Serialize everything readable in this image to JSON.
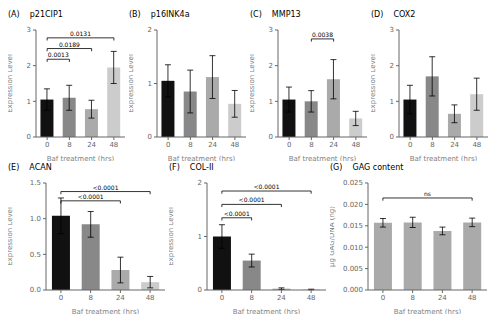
{
  "chart_data": [
    {
      "type": "bar",
      "panel_label": "(A)",
      "title": "p21CIP1",
      "x_label": "Baf treatment (hrs)",
      "y_label": "Expression Level",
      "categories": [
        "0",
        "8",
        "24",
        "48"
      ],
      "values": [
        1.05,
        1.1,
        0.78,
        1.95
      ],
      "errors": [
        0.3,
        0.35,
        0.25,
        0.45
      ],
      "colors": [
        "#111111",
        "#888888",
        "#aaaaaa",
        "#cccccc"
      ],
      "ylim": [
        0,
        3
      ],
      "yticks": [
        0,
        1,
        2,
        3
      ],
      "grid": false,
      "annotations": [
        {
          "from": "0",
          "to": "48",
          "y": 2.78,
          "text": "0.0131"
        },
        {
          "from": "0",
          "to": "24",
          "y": 2.48,
          "text": "0.0189"
        },
        {
          "from": "0",
          "to": "8",
          "y": 2.18,
          "text": "0.0013"
        }
      ]
    },
    {
      "type": "bar",
      "panel_label": "(B)",
      "title": "p16INK4a",
      "x_label": "Baf treatment (hrs)",
      "y_label": "Expression Level",
      "categories": [
        "0",
        "8",
        "24",
        "48"
      ],
      "values": [
        1.05,
        0.85,
        1.12,
        0.62
      ],
      "errors": [
        0.3,
        0.4,
        0.4,
        0.25
      ],
      "colors": [
        "#111111",
        "#888888",
        "#aaaaaa",
        "#cccccc"
      ],
      "ylim": [
        0,
        2
      ],
      "yticks": [
        0,
        1,
        2
      ],
      "grid": false,
      "annotations": []
    },
    {
      "type": "bar",
      "panel_label": "(C)",
      "title": "MMP13",
      "x_label": "Baf treatment (hrs)",
      "y_label": "Expression Level",
      "categories": [
        "0",
        "8",
        "24",
        "48"
      ],
      "values": [
        1.05,
        1.0,
        1.62,
        0.52
      ],
      "errors": [
        0.35,
        0.3,
        0.55,
        0.2
      ],
      "colors": [
        "#111111",
        "#888888",
        "#aaaaaa",
        "#cccccc"
      ],
      "ylim": [
        0,
        3
      ],
      "yticks": [
        0,
        1,
        2,
        3
      ],
      "grid": false,
      "annotations": [
        {
          "from": "8",
          "to": "24",
          "y": 2.75,
          "text": "0.0038"
        }
      ]
    },
    {
      "type": "bar",
      "panel_label": "(D)",
      "title": "COX2",
      "x_label": "Baf treatment (hrs)",
      "y_label": "Expression Level",
      "categories": [
        "0",
        "8",
        "24",
        "48"
      ],
      "values": [
        1.05,
        1.7,
        0.65,
        1.2
      ],
      "errors": [
        0.4,
        0.55,
        0.25,
        0.45
      ],
      "colors": [
        "#111111",
        "#888888",
        "#aaaaaa",
        "#cccccc"
      ],
      "ylim": [
        0,
        3
      ],
      "yticks": [
        0,
        1,
        2,
        3
      ],
      "grid": false,
      "annotations": []
    },
    {
      "type": "bar",
      "panel_label": "(E)",
      "title": "ACAN",
      "x_label": "Baf treatment (hrs)",
      "y_label": "Expression Level",
      "categories": [
        "0",
        "8",
        "24",
        "48"
      ],
      "values": [
        1.04,
        0.92,
        0.28,
        0.11
      ],
      "errors": [
        0.25,
        0.18,
        0.18,
        0.08
      ],
      "colors": [
        "#111111",
        "#888888",
        "#aaaaaa",
        "#cccccc"
      ],
      "ylim": [
        0,
        1.5
      ],
      "yticks": [
        {
          "value": 0,
          "label": "0.0"
        },
        0.5,
        {
          "value": 1.0,
          "label": "1.0"
        },
        1.5
      ],
      "grid": false,
      "annotations": [
        {
          "from": "0",
          "to": "48",
          "y": 1.38,
          "text": "<0.0001"
        },
        {
          "from": "0",
          "to": "24",
          "y": 1.25,
          "text": "<0.0001"
        }
      ]
    },
    {
      "type": "bar",
      "panel_label": "(F)",
      "title": "COL-II",
      "x_label": "Baf treatment (hrs)",
      "y_label": "Expression Level",
      "categories": [
        "0",
        "8",
        "24",
        "48"
      ],
      "values": [
        1.0,
        0.55,
        0.025,
        0.01
      ],
      "errors": [
        0.22,
        0.12,
        0.015,
        0.005
      ],
      "colors": [
        "#111111",
        "#888888",
        "#aaaaaa",
        "#cccccc"
      ],
      "ylim": [
        0,
        2
      ],
      "yticks": [
        0,
        1,
        2
      ],
      "grid": false,
      "annotations": [
        {
          "from": "0",
          "to": "48",
          "y": 1.85,
          "text": "<0.0001"
        },
        {
          "from": "0",
          "to": "24",
          "y": 1.6,
          "text": "<0.0001"
        },
        {
          "from": "0",
          "to": "8",
          "y": 1.35,
          "text": "<0.0001"
        }
      ]
    },
    {
      "type": "bar",
      "panel_label": "(G)",
      "title": "GAG content",
      "x_label": "Baf treatment (hrs)",
      "y_label": "μg GAG/DNA (ng)",
      "categories": [
        "0",
        "8",
        "24",
        "48"
      ],
      "values": [
        0.0157,
        0.0158,
        0.0138,
        0.0158
      ],
      "errors": [
        0.001,
        0.0012,
        0.0009,
        0.001
      ],
      "colors": [
        "#aaaaaa",
        "#aaaaaa",
        "#aaaaaa",
        "#aaaaaa"
      ],
      "ylim": [
        0,
        0.025
      ],
      "yticks": [
        {
          "value": 0,
          "label": "0.000"
        },
        {
          "value": 0.005,
          "label": "0.005"
        },
        {
          "value": 0.01,
          "label": "0.010"
        },
        {
          "value": 0.015,
          "label": "0.015"
        },
        {
          "value": 0.02,
          "label": "0.020"
        },
        {
          "value": 0.025,
          "label": "0.025"
        }
      ],
      "grid": false,
      "annotations": [
        {
          "from": "0",
          "to": "48",
          "y": 0.0215,
          "text": "ns"
        }
      ]
    }
  ]
}
